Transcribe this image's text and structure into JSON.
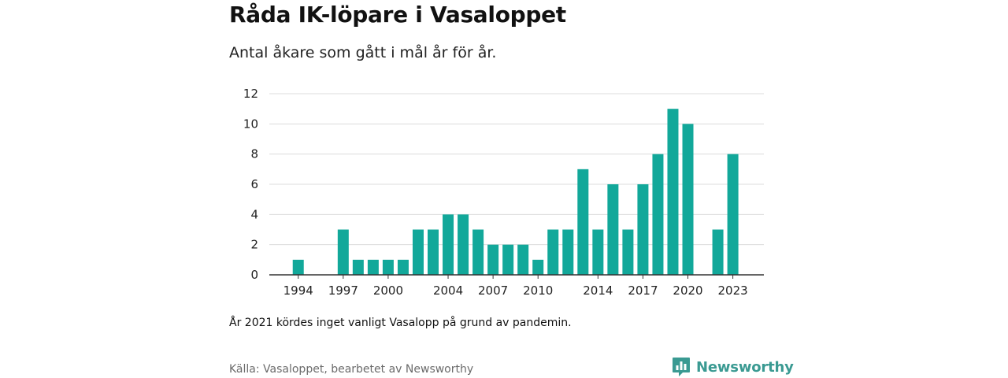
{
  "title": "Råda IK-löpare i Vasaloppet",
  "subtitle": "Antal åkare som gått i mål år för år.",
  "note": "År 2021 kördes inget vanligt Vasalopp på grund av pandemin.",
  "source": "Källa: Vasaloppet, bearbetet av Newsworthy",
  "brand": {
    "name": "Newsworthy",
    "icon": "newsworthy-logo-icon",
    "color": "#3a9a92"
  },
  "chart_data": {
    "type": "bar",
    "title": "Råda IK-löpare i Vasaloppet",
    "xlabel": "",
    "ylabel": "",
    "bar_color": "#12a89a",
    "grid": true,
    "ylim": [
      0,
      12
    ],
    "yticks": [
      0,
      2,
      4,
      6,
      8,
      10,
      12
    ],
    "xticks": [
      1994,
      1997,
      2000,
      2004,
      2007,
      2010,
      2014,
      2017,
      2020,
      2023
    ],
    "categories": [
      1993,
      1994,
      1995,
      1996,
      1997,
      1998,
      1999,
      2000,
      2001,
      2002,
      2003,
      2004,
      2005,
      2006,
      2007,
      2008,
      2009,
      2010,
      2011,
      2012,
      2013,
      2014,
      2015,
      2016,
      2017,
      2018,
      2019,
      2020,
      2021,
      2022,
      2023
    ],
    "values": [
      0,
      1,
      0,
      0,
      3,
      1,
      1,
      1,
      1,
      3,
      3,
      4,
      4,
      3,
      2,
      2,
      2,
      1,
      3,
      3,
      7,
      3,
      6,
      3,
      6,
      8,
      11,
      10,
      0,
      3,
      8
    ]
  }
}
